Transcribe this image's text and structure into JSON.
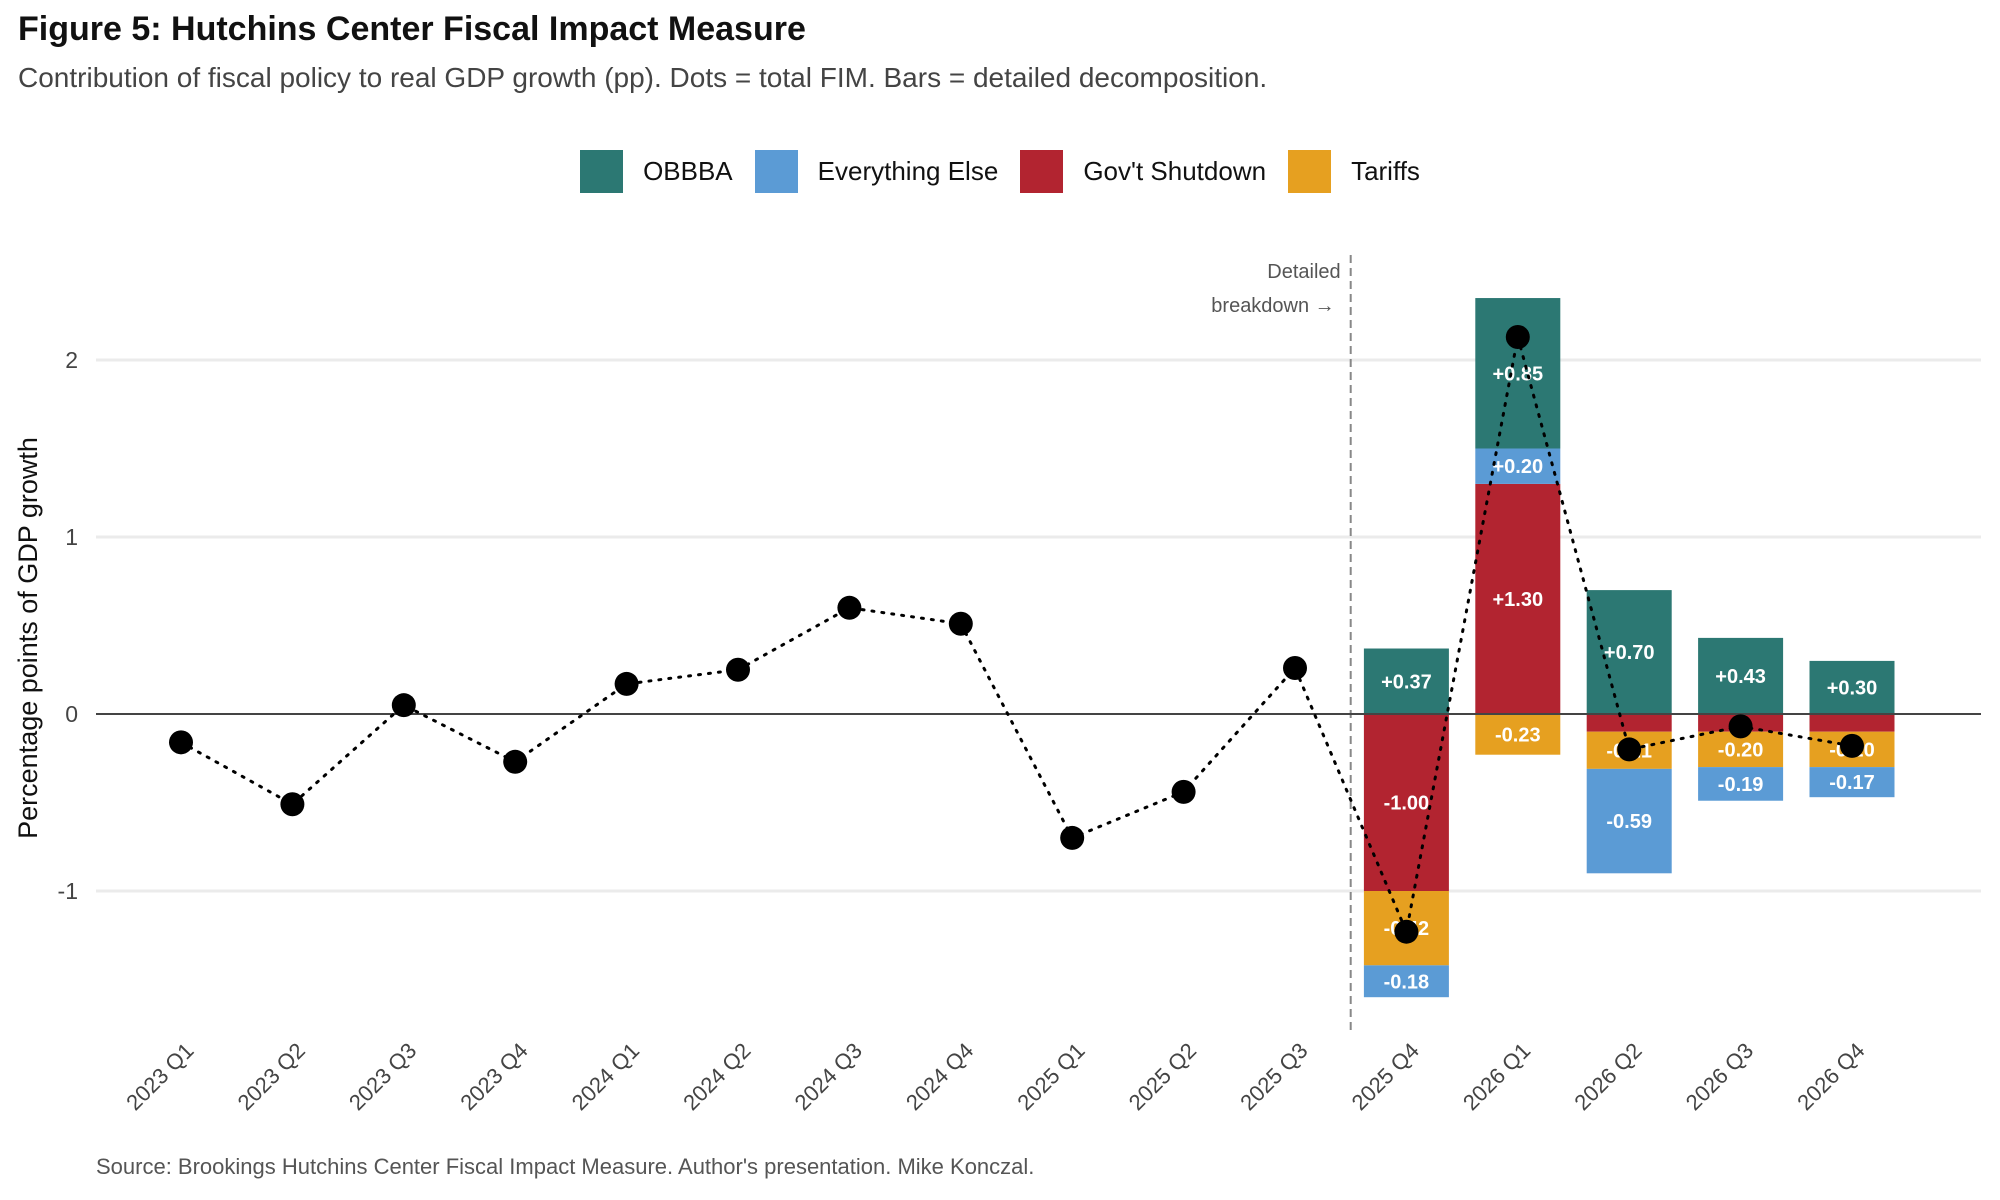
{
  "title": "Figure 5: Hutchins Center Fiscal Impact Measure",
  "subtitle": "Contribution of fiscal policy to real GDP growth (pp). Dots = total FIM. Bars = detailed decomposition.",
  "source": "Source: Brookings Hutchins Center Fiscal Impact Measure. Author's presentation. Mike Konczal.",
  "colors": {
    "OBBBA": "#2c7873",
    "Everything Else": "#5b9bd5",
    "Gov't Shutdown": "#b22430",
    "Tariffs": "#e6a020"
  },
  "legend": [
    {
      "label": "OBBBA",
      "color": "#2c7873"
    },
    {
      "label": "Everything Else",
      "color": "#5b9bd5"
    },
    {
      "label": "Gov't Shutdown",
      "color": "#b22430"
    },
    {
      "label": "Tariffs",
      "color": "#e6a020"
    }
  ],
  "chart_data": {
    "type": "bar",
    "title": "Figure 5: Hutchins Center Fiscal Impact Measure",
    "xlabel": "",
    "ylabel": "Percentage points of GDP growth",
    "ylim": [
      -1.8,
      2.6
    ],
    "yticks": [
      -1,
      0,
      1,
      2
    ],
    "grid": true,
    "legend_position": "top",
    "annotation": {
      "line1": "Detailed",
      "line2": "breakdown →",
      "at_category": "2025 Q4"
    },
    "categories": [
      "2023 Q1",
      "2023 Q2",
      "2023 Q3",
      "2023 Q4",
      "2024 Q1",
      "2024 Q2",
      "2024 Q3",
      "2024 Q4",
      "2025 Q1",
      "2025 Q2",
      "2025 Q3",
      "2025 Q4",
      "2026 Q1",
      "2026 Q2",
      "2026 Q3",
      "2026 Q4"
    ],
    "total_fim": [
      -0.16,
      -0.51,
      0.05,
      -0.27,
      0.17,
      0.25,
      0.6,
      0.51,
      -0.7,
      -0.44,
      0.26,
      -1.23,
      2.13,
      -0.2,
      -0.07,
      -0.18
    ],
    "stacks": [
      {
        "category": "2025 Q4",
        "segments": [
          {
            "name": "OBBBA",
            "value": 0.37,
            "label": "+0.37"
          },
          {
            "name": "Gov't Shutdown",
            "value": -1.0,
            "label": "-1.00"
          },
          {
            "name": "Tariffs",
            "value": -0.42,
            "label": "-0.42"
          },
          {
            "name": "Everything Else",
            "value": -0.18,
            "label": "-0.18"
          }
        ]
      },
      {
        "category": "2026 Q1",
        "segments": [
          {
            "name": "Gov't Shutdown",
            "value": 1.3,
            "label": "+1.30"
          },
          {
            "name": "Everything Else",
            "value": 0.2,
            "label": "+0.20"
          },
          {
            "name": "OBBBA",
            "value": 0.85,
            "label": "+0.85"
          },
          {
            "name": "Tariffs",
            "value": -0.23,
            "label": "-0.23"
          }
        ]
      },
      {
        "category": "2026 Q2",
        "segments": [
          {
            "name": "OBBBA",
            "value": 0.7,
            "label": "+0.70"
          },
          {
            "name": "Gov't Shutdown",
            "value": -0.1,
            "label": ""
          },
          {
            "name": "Tariffs",
            "value": -0.21,
            "label": "-0.21"
          },
          {
            "name": "Everything Else",
            "value": -0.59,
            "label": "-0.59"
          }
        ]
      },
      {
        "category": "2026 Q3",
        "segments": [
          {
            "name": "OBBBA",
            "value": 0.43,
            "label": "+0.43"
          },
          {
            "name": "Gov't Shutdown",
            "value": -0.1,
            "label": ""
          },
          {
            "name": "Tariffs",
            "value": -0.2,
            "label": "-0.20"
          },
          {
            "name": "Everything Else",
            "value": -0.19,
            "label": "-0.19"
          }
        ]
      },
      {
        "category": "2026 Q4",
        "segments": [
          {
            "name": "OBBBA",
            "value": 0.3,
            "label": "+0.30"
          },
          {
            "name": "Gov't Shutdown",
            "value": -0.1,
            "label": ""
          },
          {
            "name": "Tariffs",
            "value": -0.2,
            "label": "-0.20"
          },
          {
            "name": "Everything Else",
            "value": -0.17,
            "label": "-0.17"
          }
        ]
      }
    ]
  }
}
